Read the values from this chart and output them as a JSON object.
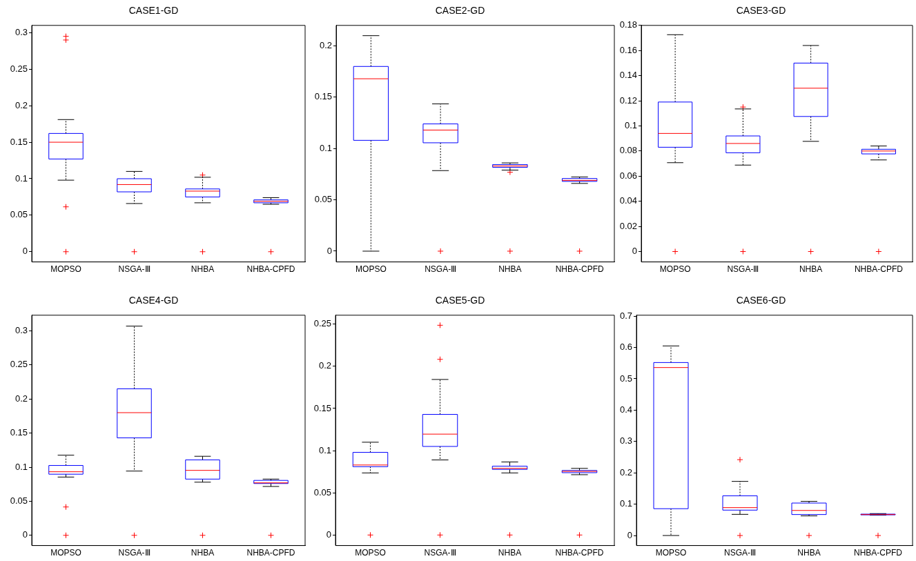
{
  "chart_data": [
    {
      "type": "box",
      "title": "CASE1-GD",
      "categories": [
        "MOPSO",
        "NSGA-Ⅲ",
        "NHBA",
        "NHBA-CPFD"
      ],
      "ylim": [
        -0.014,
        0.31
      ],
      "yticks": [
        0,
        0.05,
        0.1,
        0.15,
        0.2,
        0.25,
        0.3
      ],
      "grid": false,
      "series": [
        {
          "color": "#0000ff",
          "boxes": [
            {
              "low": 0.098,
              "q1": 0.127,
              "median": 0.15,
              "q3": 0.162,
              "high": 0.181,
              "outliers": [
                0.295,
                0.29,
                0.0615,
                0
              ]
            },
            {
              "low": 0.066,
              "q1": 0.082,
              "median": 0.092,
              "q3": 0.1,
              "high": 0.11,
              "outliers": [
                0
              ]
            },
            {
              "low": 0.067,
              "q1": 0.075,
              "median": 0.083,
              "q3": 0.086,
              "high": 0.102,
              "outliers": [
                0.105,
                0
              ]
            },
            {
              "low": 0.065,
              "q1": 0.067,
              "median": 0.069,
              "q3": 0.071,
              "high": 0.074,
              "outliers": [
                0
              ]
            }
          ]
        }
      ]
    },
    {
      "type": "box",
      "title": "CASE2-GD",
      "categories": [
        "MOPSO",
        "NSGA-Ⅲ",
        "NHBA",
        "NHBA-CPFD"
      ],
      "ylim": [
        -0.0105,
        0.22
      ],
      "yticks": [
        0,
        0.05,
        0.1,
        0.15,
        0.2
      ],
      "grid": false,
      "series": [
        {
          "color": "#0000ff",
          "boxes": [
            {
              "low": 0,
              "q1": 0.108,
              "median": 0.168,
              "q3": 0.18,
              "high": 0.21
            },
            {
              "low": 0.0785,
              "q1": 0.1056,
              "median": 0.118,
              "q3": 0.124,
              "high": 0.1435,
              "outliers": [
                0
              ]
            },
            {
              "low": 0.079,
              "q1": 0.0817,
              "median": 0.083,
              "q3": 0.0844,
              "high": 0.086,
              "outliers": [
                0.077,
                0
              ]
            },
            {
              "low": 0.066,
              "q1": 0.068,
              "median": 0.069,
              "q3": 0.0708,
              "high": 0.0723,
              "outliers": [
                0
              ]
            }
          ]
        }
      ]
    },
    {
      "type": "box",
      "title": "CASE3-GD",
      "categories": [
        "MOPSO",
        "NSGA-Ⅲ",
        "NHBA",
        "NHBA-CPFD"
      ],
      "ylim": [
        -0.0083,
        0.18
      ],
      "yticks": [
        0,
        0.02,
        0.04,
        0.06,
        0.08,
        0.1,
        0.12,
        0.14,
        0.16,
        0.18
      ],
      "grid": false,
      "series": [
        {
          "color": "#0000ff",
          "boxes": [
            {
              "low": 0.0707,
              "q1": 0.083,
              "median": 0.094,
              "q3": 0.119,
              "high": 0.1726,
              "outliers": [
                0
              ]
            },
            {
              "low": 0.0688,
              "q1": 0.0786,
              "median": 0.086,
              "q3": 0.092,
              "high": 0.1135,
              "outliers": [
                0.115,
                0
              ]
            },
            {
              "low": 0.0877,
              "q1": 0.1075,
              "median": 0.13,
              "q3": 0.15,
              "high": 0.164,
              "outliers": [
                0
              ]
            },
            {
              "low": 0.0729,
              "q1": 0.0777,
              "median": 0.08,
              "q3": 0.0814,
              "high": 0.084,
              "outliers": [
                0
              ]
            }
          ]
        }
      ]
    },
    {
      "type": "box",
      "title": "CASE4-GD",
      "categories": [
        "MOPSO",
        "NSGA-Ⅲ",
        "NHBA",
        "NHBA-CPFD"
      ],
      "ylim": [
        -0.015,
        0.323
      ],
      "yticks": [
        0,
        0.05,
        0.1,
        0.15,
        0.2,
        0.25,
        0.3
      ],
      "grid": false,
      "series": [
        {
          "color": "#0000ff",
          "boxes": [
            {
              "low": 0.0855,
              "q1": 0.0897,
              "median": 0.0933,
              "q3": 0.1025,
              "high": 0.1176,
              "outliers": [
                0.0416,
                0
              ]
            },
            {
              "low": 0.0943,
              "q1": 0.143,
              "median": 0.18,
              "q3": 0.215,
              "high": 0.307,
              "outliers": [
                0
              ]
            },
            {
              "low": 0.078,
              "q1": 0.0825,
              "median": 0.0953,
              "q3": 0.1107,
              "high": 0.116,
              "outliers": [
                0
              ]
            },
            {
              "low": 0.0717,
              "q1": 0.076,
              "median": 0.077,
              "q3": 0.0806,
              "high": 0.0825,
              "outliers": [
                0
              ]
            }
          ]
        }
      ]
    },
    {
      "type": "box",
      "title": "CASE5-GD",
      "categories": [
        "MOPSO",
        "NSGA-Ⅲ",
        "NHBA",
        "NHBA-CPFD"
      ],
      "ylim": [
        -0.0125,
        0.2606
      ],
      "yticks": [
        0,
        0.05,
        0.1,
        0.15,
        0.2,
        0.25
      ],
      "grid": false,
      "series": [
        {
          "color": "#0000ff",
          "boxes": [
            {
              "low": 0.0736,
              "q1": 0.081,
              "median": 0.083,
              "q3": 0.098,
              "high": 0.11,
              "outliers": [
                0
              ]
            },
            {
              "low": 0.089,
              "q1": 0.105,
              "median": 0.1196,
              "q3": 0.143,
              "high": 0.1844,
              "outliers": [
                0.2487,
                0.2083,
                0
              ]
            },
            {
              "low": 0.0736,
              "q1": 0.0778,
              "median": 0.079,
              "q3": 0.0816,
              "high": 0.0866,
              "outliers": [
                0
              ]
            },
            {
              "low": 0.0715,
              "q1": 0.0739,
              "median": 0.0755,
              "q3": 0.0765,
              "high": 0.079,
              "outliers": [
                0
              ]
            }
          ]
        }
      ]
    },
    {
      "type": "box",
      "title": "CASE6-GD",
      "categories": [
        "MOPSO",
        "NSGA-Ⅲ",
        "NHBA",
        "NHBA-CPFD"
      ],
      "ylim": [
        -0.032,
        0.703
      ],
      "yticks": [
        0,
        0.1,
        0.2,
        0.3,
        0.4,
        0.5,
        0.6,
        0.7
      ],
      "grid": false,
      "series": [
        {
          "color": "#0000ff",
          "boxes": [
            {
              "low": 0,
              "q1": 0.0856,
              "median": 0.536,
              "q3": 0.552,
              "high": 0.605
            },
            {
              "low": 0.0676,
              "q1": 0.081,
              "median": 0.089,
              "q3": 0.1266,
              "high": 0.1727,
              "outliers": [
                0.242,
                0
              ]
            },
            {
              "low": 0.0626,
              "q1": 0.067,
              "median": 0.08,
              "q3": 0.1036,
              "high": 0.109,
              "outliers": [
                0
              ]
            },
            {
              "low": 0.065,
              "q1": 0.066,
              "median": 0.067,
              "q3": 0.0683,
              "high": 0.07,
              "outliers": [
                0
              ]
            }
          ]
        }
      ]
    }
  ]
}
